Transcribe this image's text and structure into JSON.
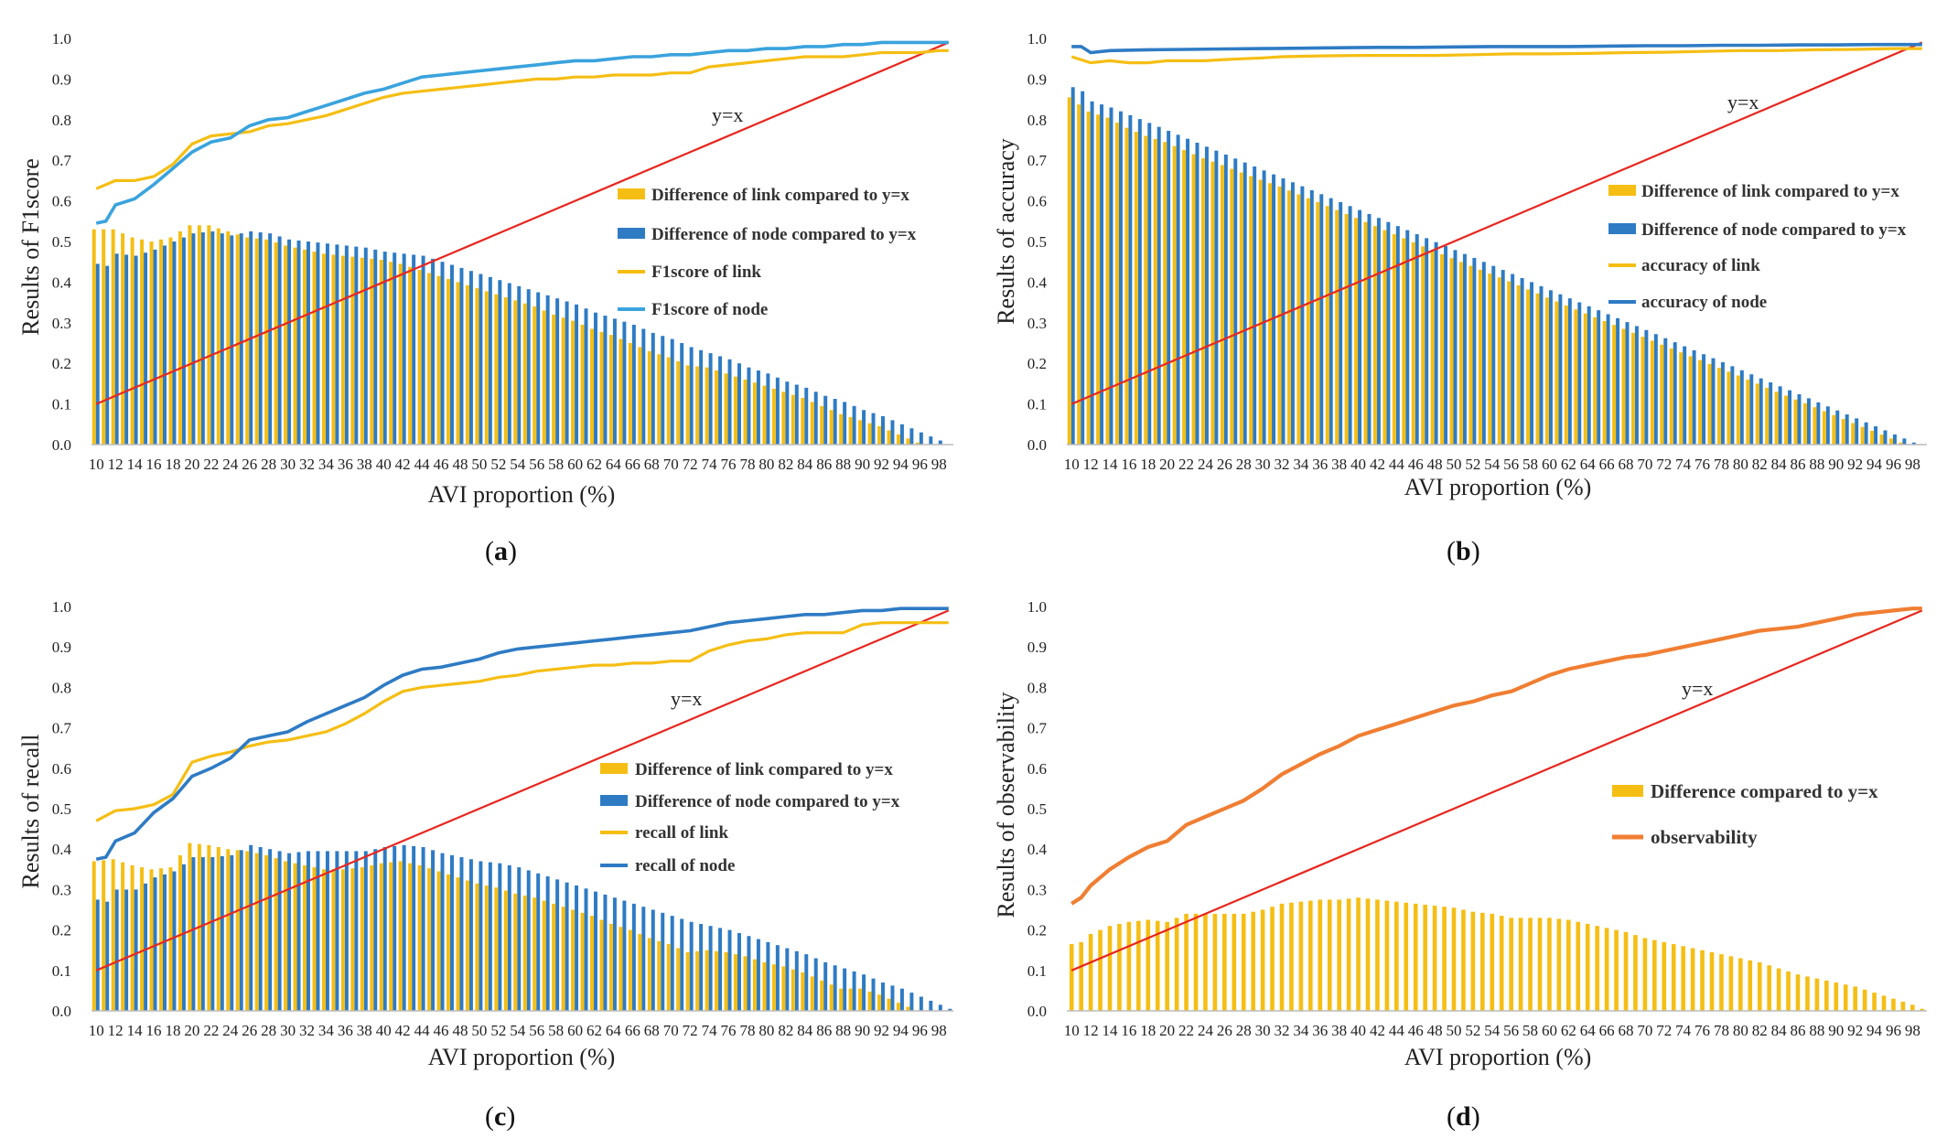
{
  "figure": {
    "captions": [
      "a",
      "b",
      "c",
      "d"
    ]
  },
  "colors": {
    "link": "#F5BE14",
    "node": "#2E7BC4",
    "f1_node": "#3AA3DD",
    "orange": "#F07E32",
    "yx": "#E8261E",
    "axis": "#bbbbbb"
  },
  "chart_data": [
    {
      "id": "a",
      "type": "bar+line",
      "xlabel": "AVI proportion (%)",
      "ylabel": "Results  of  F1score",
      "ylim": [
        0,
        1
      ],
      "yticks": [
        "0.0",
        "0.1",
        "0.2",
        "0.3",
        "0.4",
        "0.5",
        "0.6",
        "0.7",
        "0.8",
        "0.9",
        "1.0"
      ],
      "x_start": 10,
      "x_end": 99,
      "x_tick_step": 2,
      "yx_label": "y=x",
      "legend": [
        "Difference of link compared to y=x",
        "Difference of node compared to y=x",
        "F1score of link",
        "F1score of node"
      ],
      "line_link": [
        [
          10,
          0.63
        ],
        [
          12,
          0.65
        ],
        [
          14,
          0.65
        ],
        [
          16,
          0.66
        ],
        [
          18,
          0.69
        ],
        [
          20,
          0.74
        ],
        [
          22,
          0.76
        ],
        [
          24,
          0.765
        ],
        [
          26,
          0.77
        ],
        [
          28,
          0.785
        ],
        [
          30,
          0.79
        ],
        [
          32,
          0.8
        ],
        [
          34,
          0.81
        ],
        [
          36,
          0.825
        ],
        [
          38,
          0.84
        ],
        [
          40,
          0.855
        ],
        [
          42,
          0.865
        ],
        [
          44,
          0.87
        ],
        [
          46,
          0.875
        ],
        [
          48,
          0.88
        ],
        [
          50,
          0.885
        ],
        [
          52,
          0.89
        ],
        [
          54,
          0.895
        ],
        [
          56,
          0.9
        ],
        [
          58,
          0.9
        ],
        [
          60,
          0.905
        ],
        [
          62,
          0.905
        ],
        [
          64,
          0.91
        ],
        [
          66,
          0.91
        ],
        [
          68,
          0.91
        ],
        [
          70,
          0.915
        ],
        [
          72,
          0.915
        ],
        [
          74,
          0.93
        ],
        [
          76,
          0.935
        ],
        [
          78,
          0.94
        ],
        [
          80,
          0.945
        ],
        [
          82,
          0.95
        ],
        [
          84,
          0.955
        ],
        [
          86,
          0.955
        ],
        [
          88,
          0.955
        ],
        [
          90,
          0.96
        ],
        [
          92,
          0.965
        ],
        [
          94,
          0.965
        ],
        [
          96,
          0.965
        ],
        [
          98,
          0.97
        ],
        [
          99,
          0.97
        ]
      ],
      "line_node": [
        [
          10,
          0.545
        ],
        [
          11,
          0.55
        ],
        [
          12,
          0.59
        ],
        [
          14,
          0.605
        ],
        [
          16,
          0.64
        ],
        [
          18,
          0.68
        ],
        [
          20,
          0.72
        ],
        [
          22,
          0.745
        ],
        [
          24,
          0.755
        ],
        [
          26,
          0.785
        ],
        [
          28,
          0.8
        ],
        [
          30,
          0.805
        ],
        [
          32,
          0.82
        ],
        [
          34,
          0.835
        ],
        [
          36,
          0.85
        ],
        [
          38,
          0.865
        ],
        [
          40,
          0.875
        ],
        [
          42,
          0.89
        ],
        [
          44,
          0.905
        ],
        [
          46,
          0.91
        ],
        [
          48,
          0.915
        ],
        [
          50,
          0.92
        ],
        [
          52,
          0.925
        ],
        [
          54,
          0.93
        ],
        [
          56,
          0.935
        ],
        [
          58,
          0.94
        ],
        [
          60,
          0.945
        ],
        [
          62,
          0.945
        ],
        [
          64,
          0.95
        ],
        [
          66,
          0.955
        ],
        [
          68,
          0.955
        ],
        [
          70,
          0.96
        ],
        [
          72,
          0.96
        ],
        [
          74,
          0.965
        ],
        [
          76,
          0.97
        ],
        [
          78,
          0.97
        ],
        [
          80,
          0.975
        ],
        [
          82,
          0.975
        ],
        [
          84,
          0.98
        ],
        [
          86,
          0.98
        ],
        [
          88,
          0.985
        ],
        [
          90,
          0.985
        ],
        [
          92,
          0.99
        ],
        [
          94,
          0.99
        ],
        [
          96,
          0.99
        ],
        [
          98,
          0.99
        ],
        [
          99,
          0.99
        ]
      ]
    },
    {
      "id": "b",
      "type": "bar+line",
      "xlabel": "AVI proportion (%)",
      "ylabel": "Results of accuracy",
      "ylim": [
        0,
        1
      ],
      "yticks": [
        "0.0",
        "0.1",
        "0.2",
        "0.3",
        "0.4",
        "0.5",
        "0.6",
        "0.7",
        "0.8",
        "0.9",
        "1.0"
      ],
      "x_start": 10,
      "x_end": 99,
      "x_tick_step": 2,
      "yx_label": "y=x",
      "legend": [
        "Difference of link compared to y=x",
        "Difference of node compared to y=x",
        "accuracy of link",
        "accuracy of node"
      ],
      "line_link": [
        [
          10,
          0.955
        ],
        [
          12,
          0.94
        ],
        [
          14,
          0.945
        ],
        [
          16,
          0.94
        ],
        [
          18,
          0.94
        ],
        [
          20,
          0.945
        ],
        [
          22,
          0.945
        ],
        [
          24,
          0.945
        ],
        [
          26,
          0.948
        ],
        [
          28,
          0.95
        ],
        [
          30,
          0.952
        ],
        [
          32,
          0.955
        ],
        [
          36,
          0.957
        ],
        [
          40,
          0.958
        ],
        [
          44,
          0.958
        ],
        [
          48,
          0.958
        ],
        [
          52,
          0.96
        ],
        [
          56,
          0.962
        ],
        [
          60,
          0.962
        ],
        [
          64,
          0.963
        ],
        [
          68,
          0.965
        ],
        [
          72,
          0.966
        ],
        [
          76,
          0.968
        ],
        [
          80,
          0.97
        ],
        [
          84,
          0.97
        ],
        [
          88,
          0.972
        ],
        [
          92,
          0.973
        ],
        [
          96,
          0.975
        ],
        [
          99,
          0.975
        ]
      ],
      "line_node": [
        [
          10,
          0.98
        ],
        [
          11,
          0.98
        ],
        [
          12,
          0.965
        ],
        [
          14,
          0.97
        ],
        [
          18,
          0.972
        ],
        [
          22,
          0.973
        ],
        [
          26,
          0.974
        ],
        [
          30,
          0.975
        ],
        [
          34,
          0.976
        ],
        [
          38,
          0.977
        ],
        [
          42,
          0.978
        ],
        [
          46,
          0.978
        ],
        [
          50,
          0.979
        ],
        [
          54,
          0.98
        ],
        [
          58,
          0.98
        ],
        [
          62,
          0.98
        ],
        [
          66,
          0.981
        ],
        [
          70,
          0.982
        ],
        [
          74,
          0.982
        ],
        [
          78,
          0.983
        ],
        [
          82,
          0.983
        ],
        [
          86,
          0.984
        ],
        [
          90,
          0.984
        ],
        [
          94,
          0.985
        ],
        [
          99,
          0.985
        ]
      ]
    },
    {
      "id": "c",
      "type": "bar+line",
      "xlabel": "AVI proportion (%)",
      "ylabel": "Results of recall",
      "ylim": [
        0,
        1
      ],
      "yticks": [
        "0.0",
        "0.1",
        "0.2",
        "0.3",
        "0.4",
        "0.5",
        "0.6",
        "0.7",
        "0.8",
        "0.9",
        "1.0"
      ],
      "x_start": 10,
      "x_end": 99,
      "x_tick_step": 2,
      "yx_label": "y=x",
      "legend": [
        "Difference of link compared to y=x",
        "Difference of node compared to y=x",
        "recall of link",
        "recall of node"
      ],
      "line_link": [
        [
          10,
          0.47
        ],
        [
          12,
          0.495
        ],
        [
          14,
          0.5
        ],
        [
          16,
          0.51
        ],
        [
          18,
          0.535
        ],
        [
          20,
          0.615
        ],
        [
          22,
          0.63
        ],
        [
          24,
          0.64
        ],
        [
          26,
          0.655
        ],
        [
          28,
          0.665
        ],
        [
          30,
          0.67
        ],
        [
          32,
          0.68
        ],
        [
          34,
          0.69
        ],
        [
          36,
          0.71
        ],
        [
          38,
          0.735
        ],
        [
          40,
          0.765
        ],
        [
          42,
          0.79
        ],
        [
          44,
          0.8
        ],
        [
          46,
          0.805
        ],
        [
          48,
          0.81
        ],
        [
          50,
          0.815
        ],
        [
          52,
          0.825
        ],
        [
          54,
          0.83
        ],
        [
          56,
          0.84
        ],
        [
          58,
          0.845
        ],
        [
          60,
          0.85
        ],
        [
          62,
          0.855
        ],
        [
          64,
          0.855
        ],
        [
          66,
          0.86
        ],
        [
          68,
          0.86
        ],
        [
          70,
          0.865
        ],
        [
          72,
          0.865
        ],
        [
          74,
          0.89
        ],
        [
          76,
          0.905
        ],
        [
          78,
          0.915
        ],
        [
          80,
          0.92
        ],
        [
          82,
          0.93
        ],
        [
          84,
          0.935
        ],
        [
          86,
          0.935
        ],
        [
          88,
          0.935
        ],
        [
          90,
          0.955
        ],
        [
          92,
          0.96
        ],
        [
          94,
          0.96
        ],
        [
          96,
          0.96
        ],
        [
          98,
          0.96
        ],
        [
          99,
          0.96
        ]
      ],
      "line_node": [
        [
          10,
          0.375
        ],
        [
          11,
          0.38
        ],
        [
          12,
          0.42
        ],
        [
          14,
          0.44
        ],
        [
          16,
          0.49
        ],
        [
          18,
          0.525
        ],
        [
          20,
          0.58
        ],
        [
          22,
          0.6
        ],
        [
          24,
          0.625
        ],
        [
          26,
          0.67
        ],
        [
          28,
          0.68
        ],
        [
          30,
          0.69
        ],
        [
          32,
          0.715
        ],
        [
          34,
          0.735
        ],
        [
          36,
          0.755
        ],
        [
          38,
          0.775
        ],
        [
          40,
          0.805
        ],
        [
          42,
          0.83
        ],
        [
          44,
          0.845
        ],
        [
          46,
          0.85
        ],
        [
          48,
          0.86
        ],
        [
          50,
          0.87
        ],
        [
          52,
          0.885
        ],
        [
          54,
          0.895
        ],
        [
          56,
          0.9
        ],
        [
          58,
          0.905
        ],
        [
          60,
          0.91
        ],
        [
          62,
          0.915
        ],
        [
          64,
          0.92
        ],
        [
          66,
          0.925
        ],
        [
          68,
          0.93
        ],
        [
          70,
          0.935
        ],
        [
          72,
          0.94
        ],
        [
          74,
          0.95
        ],
        [
          76,
          0.96
        ],
        [
          78,
          0.965
        ],
        [
          80,
          0.97
        ],
        [
          82,
          0.975
        ],
        [
          84,
          0.98
        ],
        [
          86,
          0.98
        ],
        [
          88,
          0.985
        ],
        [
          90,
          0.99
        ],
        [
          92,
          0.99
        ],
        [
          94,
          0.995
        ],
        [
          96,
          0.995
        ],
        [
          99,
          0.995
        ]
      ]
    },
    {
      "id": "d",
      "type": "bar+line",
      "xlabel": "AVI proportion (%)",
      "ylabel": "Results of observability",
      "ylim": [
        0,
        1
      ],
      "yticks": [
        "0.0",
        "0.1",
        "0.2",
        "0.3",
        "0.4",
        "0.5",
        "0.6",
        "0.7",
        "0.8",
        "0.9",
        "1.0"
      ],
      "x_start": 10,
      "x_end": 99,
      "x_tick_step": 2,
      "yx_label": "y=x",
      "legend": [
        "Difference compared to y=x",
        "observability"
      ],
      "line_obs": [
        [
          10,
          0.265
        ],
        [
          11,
          0.28
        ],
        [
          12,
          0.31
        ],
        [
          14,
          0.35
        ],
        [
          16,
          0.38
        ],
        [
          18,
          0.405
        ],
        [
          20,
          0.42
        ],
        [
          22,
          0.46
        ],
        [
          24,
          0.48
        ],
        [
          26,
          0.5
        ],
        [
          28,
          0.52
        ],
        [
          30,
          0.55
        ],
        [
          32,
          0.585
        ],
        [
          34,
          0.61
        ],
        [
          36,
          0.635
        ],
        [
          38,
          0.655
        ],
        [
          40,
          0.68
        ],
        [
          42,
          0.695
        ],
        [
          44,
          0.71
        ],
        [
          46,
          0.725
        ],
        [
          48,
          0.74
        ],
        [
          50,
          0.755
        ],
        [
          52,
          0.765
        ],
        [
          54,
          0.78
        ],
        [
          56,
          0.79
        ],
        [
          58,
          0.81
        ],
        [
          60,
          0.83
        ],
        [
          62,
          0.845
        ],
        [
          64,
          0.855
        ],
        [
          66,
          0.865
        ],
        [
          68,
          0.875
        ],
        [
          70,
          0.88
        ],
        [
          72,
          0.89
        ],
        [
          74,
          0.9
        ],
        [
          76,
          0.91
        ],
        [
          78,
          0.92
        ],
        [
          80,
          0.93
        ],
        [
          82,
          0.94
        ],
        [
          84,
          0.945
        ],
        [
          86,
          0.95
        ],
        [
          88,
          0.96
        ],
        [
          90,
          0.97
        ],
        [
          92,
          0.98
        ],
        [
          94,
          0.985
        ],
        [
          96,
          0.99
        ],
        [
          98,
          0.995
        ],
        [
          99,
          0.995
        ]
      ]
    }
  ]
}
